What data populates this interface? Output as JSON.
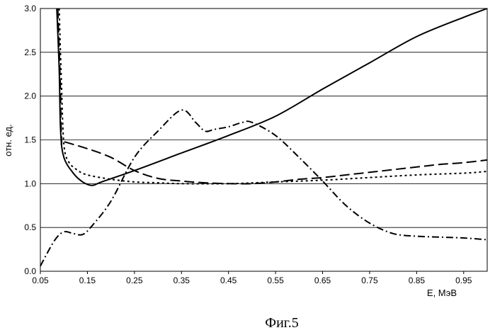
{
  "figure": {
    "caption": "Фиг.5"
  },
  "chart_data": {
    "type": "line",
    "title": "",
    "xlabel": "E, МэВ",
    "ylabel": "отн. ед.",
    "xlim": [
      0.05,
      1.0
    ],
    "ylim": [
      0.0,
      3.0
    ],
    "x_ticks": [
      0.05,
      0.15,
      0.25,
      0.35,
      0.45,
      0.55,
      0.65,
      0.75,
      0.85,
      0.95
    ],
    "y_ticks": [
      0.0,
      0.5,
      1.0,
      1.5,
      2.0,
      2.5,
      3.0
    ],
    "grid": {
      "horizontal": true,
      "vertical": false
    },
    "legend": "none",
    "series": [
      {
        "style": "solid",
        "points": [
          [
            0.085,
            3.0
          ],
          [
            0.09,
            2.3
          ],
          [
            0.093,
            1.6
          ],
          [
            0.1,
            1.3
          ],
          [
            0.12,
            1.12
          ],
          [
            0.14,
            1.02
          ],
          [
            0.16,
            0.98
          ],
          [
            0.18,
            1.02
          ],
          [
            0.25,
            1.15
          ],
          [
            0.35,
            1.35
          ],
          [
            0.45,
            1.55
          ],
          [
            0.55,
            1.77
          ],
          [
            0.65,
            2.08
          ],
          [
            0.75,
            2.38
          ],
          [
            0.85,
            2.68
          ],
          [
            0.95,
            2.9
          ],
          [
            1.0,
            3.0
          ]
        ]
      },
      {
        "style": "dashed",
        "points": [
          [
            0.087,
            3.0
          ],
          [
            0.092,
            2.2
          ],
          [
            0.095,
            1.5
          ],
          [
            0.1,
            1.48
          ],
          [
            0.15,
            1.4
          ],
          [
            0.2,
            1.3
          ],
          [
            0.25,
            1.15
          ],
          [
            0.3,
            1.06
          ],
          [
            0.35,
            1.03
          ],
          [
            0.4,
            1.01
          ],
          [
            0.45,
            1.0
          ],
          [
            0.5,
            1.0
          ],
          [
            0.55,
            1.02
          ],
          [
            0.6,
            1.05
          ],
          [
            0.65,
            1.07
          ],
          [
            0.7,
            1.1
          ],
          [
            0.75,
            1.13
          ],
          [
            0.8,
            1.16
          ],
          [
            0.85,
            1.19
          ],
          [
            0.9,
            1.22
          ],
          [
            0.95,
            1.24
          ],
          [
            1.0,
            1.27
          ]
        ]
      },
      {
        "style": "dotted",
        "points": [
          [
            0.09,
            3.0
          ],
          [
            0.095,
            2.1
          ],
          [
            0.1,
            1.45
          ],
          [
            0.11,
            1.25
          ],
          [
            0.13,
            1.15
          ],
          [
            0.15,
            1.1
          ],
          [
            0.2,
            1.05
          ],
          [
            0.25,
            1.02
          ],
          [
            0.3,
            1.01
          ],
          [
            0.35,
            1.0
          ],
          [
            0.45,
            1.0
          ],
          [
            0.55,
            1.02
          ],
          [
            0.65,
            1.04
          ],
          [
            0.75,
            1.07
          ],
          [
            0.85,
            1.1
          ],
          [
            0.95,
            1.12
          ],
          [
            1.0,
            1.14
          ]
        ]
      },
      {
        "style": "dash-dot",
        "points": [
          [
            0.05,
            0.06
          ],
          [
            0.08,
            0.35
          ],
          [
            0.1,
            0.45
          ],
          [
            0.12,
            0.43
          ],
          [
            0.14,
            0.42
          ],
          [
            0.16,
            0.52
          ],
          [
            0.2,
            0.8
          ],
          [
            0.25,
            1.3
          ],
          [
            0.3,
            1.6
          ],
          [
            0.35,
            1.84
          ],
          [
            0.38,
            1.7
          ],
          [
            0.4,
            1.6
          ],
          [
            0.42,
            1.62
          ],
          [
            0.45,
            1.65
          ],
          [
            0.48,
            1.7
          ],
          [
            0.5,
            1.7
          ],
          [
            0.55,
            1.55
          ],
          [
            0.6,
            1.3
          ],
          [
            0.65,
            1.03
          ],
          [
            0.7,
            0.75
          ],
          [
            0.75,
            0.55
          ],
          [
            0.8,
            0.43
          ],
          [
            0.85,
            0.4
          ],
          [
            0.9,
            0.39
          ],
          [
            0.95,
            0.38
          ],
          [
            1.0,
            0.36
          ]
        ]
      }
    ]
  }
}
